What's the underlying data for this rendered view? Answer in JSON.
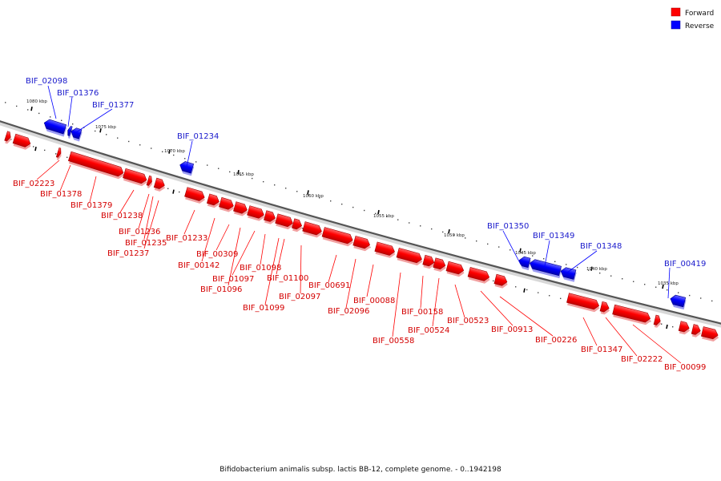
{
  "legend": {
    "forward": {
      "label": "Forward",
      "color": "#ff0000"
    },
    "reverse": {
      "label": "Reverse",
      "color": "#0000ff"
    }
  },
  "caption": "Bifidobacterium animalis subsp. lactis BB-12, complete genome. - 0..1942198",
  "scale_labels": [
    "1080 kbp",
    "1075 kbp",
    "1070 kbp",
    "1065 kbp",
    "1060 kbp",
    "1055 kbp",
    "1050 kbp",
    "1045 kbp",
    "1040 kbp",
    "1035 kbp"
  ],
  "reverse_genes": [
    "BIF_02098",
    "BIF_01376",
    "BIF_01377",
    "BIF_01234",
    "BIF_01350",
    "BIF_01349",
    "BIF_01348",
    "BIF_00419"
  ],
  "forward_genes": [
    "BIF_02223",
    "BIF_01378",
    "BIF_01379",
    "BIF_01238",
    "BIF_01236",
    "BIF_01235",
    "BIF_01237",
    "BIF_01233",
    "BIF_00142",
    "BIF_00309",
    "BIF_01096",
    "BIF_01097",
    "BIF_01098",
    "BIF_01099",
    "BIF_01100",
    "BIF_02097",
    "BIF_00691",
    "BIF_02096",
    "BIF_00088",
    "BIF_00558",
    "BIF_00158",
    "BIF_00524",
    "BIF_00523",
    "BIF_00913",
    "BIF_00226",
    "BIF_01347",
    "BIF_02222",
    "BIF_00099"
  ]
}
